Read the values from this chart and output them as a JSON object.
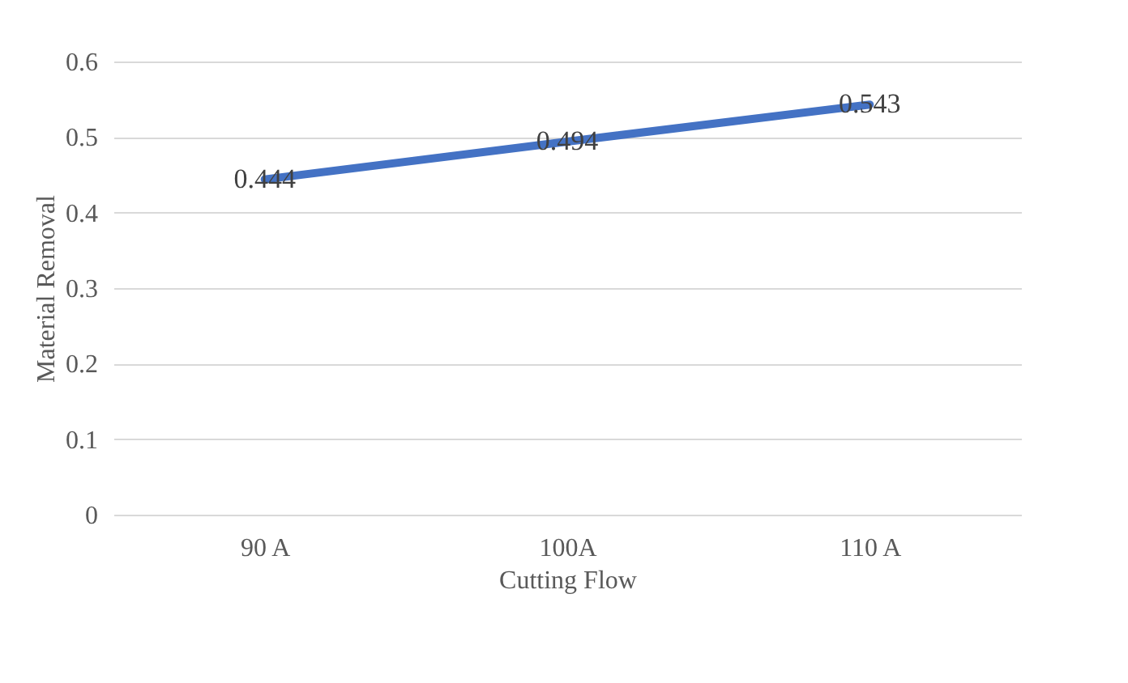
{
  "chart_data": {
    "type": "line",
    "xlabel": "Cutting Flow",
    "ylabel": "Material Removal",
    "categories": [
      "90 A",
      "100A",
      "110 A"
    ],
    "series": [
      {
        "color": "#4472c4",
        "values": [
          0.444,
          0.494,
          0.543
        ]
      }
    ],
    "ylim": [
      0,
      0.6
    ],
    "yticks": [
      0,
      0.1,
      0.2,
      0.3,
      0.4,
      0.5,
      0.6
    ],
    "grid": "y",
    "data_labels": true,
    "marker": "none",
    "line_style": "solid",
    "legend": false
  }
}
